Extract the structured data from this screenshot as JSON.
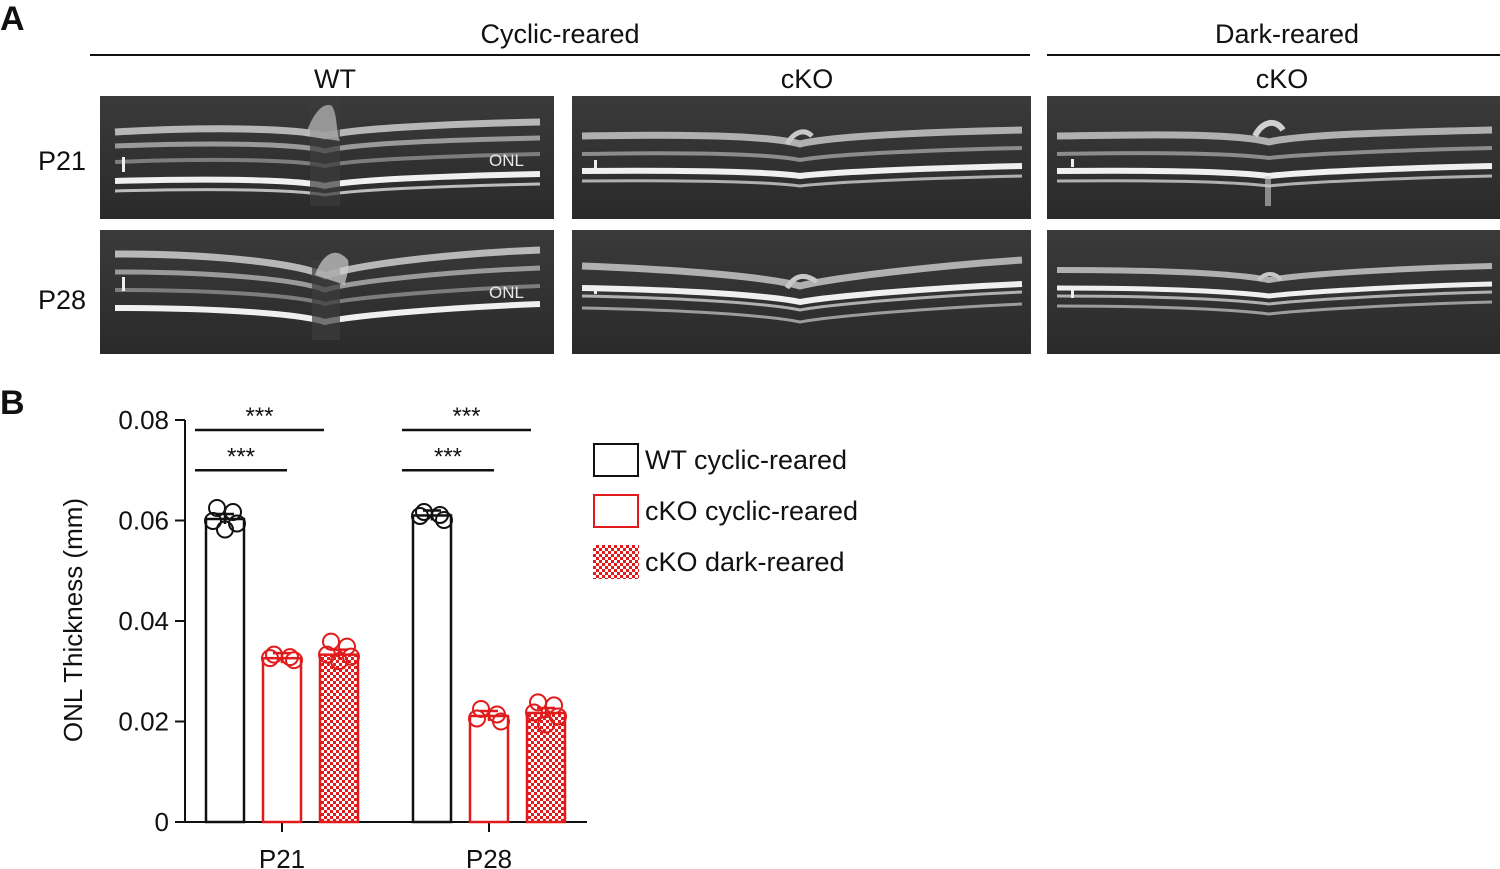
{
  "panel_a": {
    "letter": "A",
    "groups": [
      "Cyclic-reared",
      "Dark-reared"
    ],
    "columns": [
      "WT",
      "cKO",
      "cKO"
    ],
    "rows": [
      "P21",
      "P28"
    ],
    "onl_label": "ONL"
  },
  "panel_b": {
    "letter": "B"
  },
  "colors": {
    "wt": "#111111",
    "cko": "#e11b1b"
  },
  "chart_data": {
    "type": "bar",
    "ylabel": "ONL Thickness (mm)",
    "xlabel": "",
    "ylim": [
      0,
      0.08
    ],
    "yticks": [
      "0",
      "0.02",
      "0.04",
      "0.06",
      "0.08"
    ],
    "categories": [
      "P21",
      "P28"
    ],
    "series": [
      {
        "name": "WT cyclic-reared",
        "values": [
          0.0603,
          0.061
        ],
        "points": [
          [
            0.0625,
            0.0617,
            0.0599,
            0.0594,
            0.0582
          ],
          [
            0.0617,
            0.0611,
            0.0609,
            0.0601
          ]
        ]
      },
      {
        "name": "cKO cyclic-reared",
        "values": [
          0.0326,
          0.0211
        ],
        "points": [
          [
            0.0333,
            0.0328,
            0.0326,
            0.0322
          ],
          [
            0.0225,
            0.0214,
            0.0206,
            0.02
          ]
        ]
      },
      {
        "name": "cKO dark-reared",
        "values": [
          0.0333,
          0.0217
        ],
        "points": [
          [
            0.0359,
            0.0349,
            0.0333,
            0.0329,
            0.032
          ],
          [
            0.0238,
            0.0232,
            0.0218,
            0.021,
            0.0194
          ]
        ]
      }
    ],
    "significance": [
      {
        "category": "P21",
        "label": "***"
      },
      {
        "category": "P21",
        "label": "***"
      },
      {
        "category": "P28",
        "label": "***"
      },
      {
        "category": "P28",
        "label": "***"
      }
    ]
  }
}
